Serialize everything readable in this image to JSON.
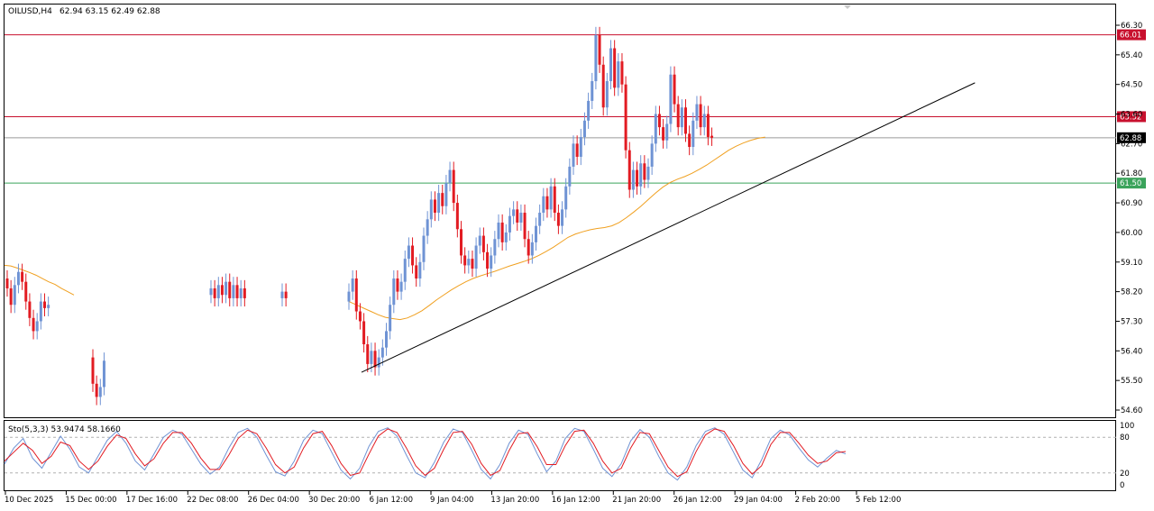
{
  "header": {
    "title": "OILUSD,H4",
    "ohlc": "62.94 63.15 62.49 62.88"
  },
  "indicator": {
    "label": "Sto(5,3,3) 53.9474 58.1660",
    "levels": [
      80,
      20
    ],
    "axis_ticks": [
      "100",
      "80",
      "20",
      "0"
    ]
  },
  "colors": {
    "bull": "#6f93d4",
    "bear": "#e21b22",
    "ma": "#f0a020",
    "resistance": "#c8102e",
    "support": "#3aa35b",
    "current": "#9a9a9a",
    "trendline": "#000000",
    "stoch_main": "#6f93d4",
    "stoch_signal": "#e21b22"
  },
  "chart_data": {
    "type": "candlestick",
    "symbol": "OILUSD",
    "timeframe": "H4",
    "ylim": [
      54.6,
      66.7
    ],
    "y_ticks": [
      "66.30",
      "65.40",
      "64.50",
      "63.60",
      "62.70",
      "61.80",
      "60.90",
      "60.00",
      "59.10",
      "58.20",
      "57.30",
      "56.40",
      "55.50",
      "54.60"
    ],
    "x_ticks": [
      "10 Dec 2025",
      "15 Dec 00:00",
      "17 Dec 16:00",
      "22 Dec 08:00",
      "26 Dec 04:00",
      "30 Dec 20:00",
      "6 Jan 12:00",
      "9 Jan 04:00",
      "13 Jan 20:00",
      "16 Jan 12:00",
      "21 Jan 20:00",
      "26 Jan 12:00",
      "29 Jan 04:00",
      "2 Feb 20:00",
      "5 Feb 12:00"
    ],
    "levels": [
      {
        "label": "66.01",
        "value": 66.01,
        "kind": "resistance"
      },
      {
        "label": "63.52",
        "value": 63.52,
        "kind": "resistance"
      },
      {
        "label": "62.88",
        "value": 62.88,
        "kind": "current"
      },
      {
        "label": "61.50",
        "value": 61.5,
        "kind": "support"
      }
    ],
    "trendline": {
      "from": {
        "bar": 0,
        "price": 55.75
      },
      "to": {
        "bar": 108,
        "price": 64.55
      }
    },
    "series": [
      {
        "seg": 1,
        "o": 58.6,
        "c": 58.3
      },
      {
        "seg": 1,
        "o": 58.3,
        "c": 57.8
      },
      {
        "seg": 1,
        "o": 57.8,
        "c": 58.4
      },
      {
        "seg": 1,
        "o": 58.4,
        "c": 58.8
      },
      {
        "seg": 1,
        "o": 58.8,
        "c": 58.5
      },
      {
        "seg": 1,
        "o": 58.5,
        "c": 57.9
      },
      {
        "seg": 1,
        "o": 57.9,
        "c": 57.4
      },
      {
        "seg": 1,
        "o": 57.4,
        "c": 57.0
      },
      {
        "seg": 1,
        "o": 57.0,
        "c": 57.3
      },
      {
        "seg": 1,
        "o": 57.3,
        "c": 57.9
      },
      {
        "seg": 1,
        "o": 57.9,
        "c": 57.7
      },
      {
        "seg": 1,
        "o": 57.7,
        "c": 57.8
      },
      {
        "seg": 2,
        "o": 56.2,
        "c": 55.4
      },
      {
        "seg": 2,
        "o": 55.4,
        "c": 55.0
      },
      {
        "seg": 2,
        "o": 55.0,
        "c": 55.3
      },
      {
        "seg": 2,
        "o": 55.3,
        "c": 56.1
      },
      {
        "seg": 3,
        "o": 58.1,
        "c": 58.3
      },
      {
        "seg": 3,
        "o": 58.3,
        "c": 58.0
      },
      {
        "seg": 3,
        "o": 58.0,
        "c": 58.4
      },
      {
        "seg": 3,
        "o": 58.4,
        "c": 58.1
      },
      {
        "seg": 3,
        "o": 58.1,
        "c": 58.5
      },
      {
        "seg": 3,
        "o": 58.5,
        "c": 58.0
      },
      {
        "seg": 3,
        "o": 58.0,
        "c": 58.4
      },
      {
        "seg": 3,
        "o": 58.4,
        "c": 58.0
      },
      {
        "seg": 3,
        "o": 58.0,
        "c": 58.3
      },
      {
        "seg": 3,
        "o": 58.3,
        "c": 58.0
      },
      {
        "seg": 4,
        "o": 58.0,
        "c": 58.2
      },
      {
        "seg": 4,
        "o": 58.2,
        "c": 58.0
      },
      {
        "seg": 5,
        "o": 57.9,
        "c": 58.2
      },
      {
        "seg": 5,
        "o": 58.2,
        "c": 58.6
      },
      {
        "seg": 5,
        "o": 58.6,
        "c": 57.6
      },
      {
        "seg": 5,
        "o": 57.6,
        "c": 57.3
      },
      {
        "seg": 5,
        "o": 57.3,
        "c": 56.6
      },
      {
        "seg": 5,
        "o": 56.6,
        "c": 56.0
      },
      {
        "seg": 5,
        "o": 56.0,
        "c": 56.4
      },
      {
        "seg": 5,
        "o": 56.4,
        "c": 55.9
      },
      {
        "seg": 5,
        "o": 55.9,
        "c": 56.2
      },
      {
        "seg": 5,
        "o": 56.2,
        "c": 56.5
      },
      {
        "seg": 5,
        "o": 56.5,
        "c": 57.0
      },
      {
        "seg": 5,
        "o": 57.0,
        "c": 57.8
      },
      {
        "seg": 5,
        "o": 57.8,
        "c": 58.6
      },
      {
        "seg": 5,
        "o": 58.6,
        "c": 58.2
      },
      {
        "seg": 5,
        "o": 58.2,
        "c": 58.5
      },
      {
        "seg": 5,
        "o": 58.5,
        "c": 59.2
      },
      {
        "seg": 5,
        "o": 59.2,
        "c": 59.6
      },
      {
        "seg": 5,
        "o": 59.6,
        "c": 59.0
      },
      {
        "seg": 5,
        "o": 59.0,
        "c": 58.6
      },
      {
        "seg": 5,
        "o": 58.6,
        "c": 59.1
      },
      {
        "seg": 5,
        "o": 59.1,
        "c": 59.9
      },
      {
        "seg": 5,
        "o": 59.9,
        "c": 60.4
      },
      {
        "seg": 5,
        "o": 60.4,
        "c": 61.0
      },
      {
        "seg": 5,
        "o": 61.0,
        "c": 60.6
      },
      {
        "seg": 5,
        "o": 60.6,
        "c": 61.2
      },
      {
        "seg": 5,
        "o": 61.2,
        "c": 60.8
      },
      {
        "seg": 5,
        "o": 60.8,
        "c": 61.5
      },
      {
        "seg": 5,
        "o": 61.5,
        "c": 61.9
      },
      {
        "seg": 5,
        "o": 61.9,
        "c": 60.9
      },
      {
        "seg": 5,
        "o": 60.9,
        "c": 60.1
      },
      {
        "seg": 5,
        "o": 60.1,
        "c": 59.3
      },
      {
        "seg": 5,
        "o": 59.3,
        "c": 59.0
      },
      {
        "seg": 5,
        "o": 59.0,
        "c": 59.2
      },
      {
        "seg": 5,
        "o": 59.2,
        "c": 58.9
      },
      {
        "seg": 5,
        "o": 58.9,
        "c": 59.6
      },
      {
        "seg": 5,
        "o": 59.6,
        "c": 59.9
      },
      {
        "seg": 5,
        "o": 59.9,
        "c": 59.4
      },
      {
        "seg": 5,
        "o": 59.4,
        "c": 58.9
      },
      {
        "seg": 5,
        "o": 58.9,
        "c": 59.3
      },
      {
        "seg": 5,
        "o": 59.3,
        "c": 59.8
      },
      {
        "seg": 5,
        "o": 59.8,
        "c": 60.3
      },
      {
        "seg": 5,
        "o": 60.3,
        "c": 59.7
      },
      {
        "seg": 5,
        "o": 59.7,
        "c": 60.0
      },
      {
        "seg": 5,
        "o": 60.0,
        "c": 60.5
      },
      {
        "seg": 5,
        "o": 60.5,
        "c": 60.7
      },
      {
        "seg": 5,
        "o": 60.7,
        "c": 60.3
      },
      {
        "seg": 5,
        "o": 60.3,
        "c": 60.6
      },
      {
        "seg": 5,
        "o": 60.6,
        "c": 59.8
      },
      {
        "seg": 5,
        "o": 59.8,
        "c": 59.3
      },
      {
        "seg": 5,
        "o": 59.3,
        "c": 59.7
      },
      {
        "seg": 5,
        "o": 59.7,
        "c": 60.2
      },
      {
        "seg": 5,
        "o": 60.2,
        "c": 60.6
      },
      {
        "seg": 5,
        "o": 60.6,
        "c": 61.1
      },
      {
        "seg": 5,
        "o": 61.1,
        "c": 60.7
      },
      {
        "seg": 5,
        "o": 60.7,
        "c": 61.4
      },
      {
        "seg": 5,
        "o": 61.4,
        "c": 60.6
      },
      {
        "seg": 5,
        "o": 60.6,
        "c": 60.2
      },
      {
        "seg": 5,
        "o": 60.2,
        "c": 60.7
      },
      {
        "seg": 5,
        "o": 60.7,
        "c": 61.4
      },
      {
        "seg": 5,
        "o": 61.4,
        "c": 62.0
      },
      {
        "seg": 5,
        "o": 62.0,
        "c": 62.7
      },
      {
        "seg": 5,
        "o": 62.7,
        "c": 62.3
      },
      {
        "seg": 5,
        "o": 62.3,
        "c": 62.9
      },
      {
        "seg": 5,
        "o": 62.9,
        "c": 63.4
      },
      {
        "seg": 5,
        "o": 63.4,
        "c": 64.0
      },
      {
        "seg": 5,
        "o": 64.0,
        "c": 64.6
      },
      {
        "seg": 5,
        "o": 64.6,
        "c": 66.0
      },
      {
        "seg": 5,
        "o": 66.0,
        "c": 65.1
      },
      {
        "seg": 5,
        "o": 65.1,
        "c": 63.8
      },
      {
        "seg": 5,
        "o": 63.8,
        "c": 64.6
      },
      {
        "seg": 5,
        "o": 64.6,
        "c": 65.6
      },
      {
        "seg": 5,
        "o": 65.6,
        "c": 64.4
      },
      {
        "seg": 5,
        "o": 64.4,
        "c": 65.2
      },
      {
        "seg": 5,
        "o": 65.2,
        "c": 64.5
      },
      {
        "seg": 5,
        "o": 64.5,
        "c": 62.5
      },
      {
        "seg": 5,
        "o": 62.5,
        "c": 61.3
      },
      {
        "seg": 5,
        "o": 61.3,
        "c": 61.9
      },
      {
        "seg": 5,
        "o": 61.9,
        "c": 61.4
      },
      {
        "seg": 5,
        "o": 61.4,
        "c": 62.1
      },
      {
        "seg": 5,
        "o": 62.1,
        "c": 61.6
      },
      {
        "seg": 5,
        "o": 61.6,
        "c": 62.0
      },
      {
        "seg": 5,
        "o": 62.0,
        "c": 62.7
      },
      {
        "seg": 5,
        "o": 62.7,
        "c": 63.6
      },
      {
        "seg": 5,
        "o": 63.6,
        "c": 63.2
      },
      {
        "seg": 5,
        "o": 63.2,
        "c": 62.8
      },
      {
        "seg": 5,
        "o": 62.8,
        "c": 63.3
      },
      {
        "seg": 5,
        "o": 63.3,
        "c": 64.8
      },
      {
        "seg": 5,
        "o": 64.8,
        "c": 63.9
      },
      {
        "seg": 5,
        "o": 63.9,
        "c": 63.2
      },
      {
        "seg": 5,
        "o": 63.2,
        "c": 63.8
      },
      {
        "seg": 5,
        "o": 63.8,
        "c": 63.0
      },
      {
        "seg": 5,
        "o": 63.0,
        "c": 62.6
      },
      {
        "seg": 5,
        "o": 62.6,
        "c": 63.4
      },
      {
        "seg": 5,
        "o": 63.4,
        "c": 63.9
      },
      {
        "seg": 5,
        "o": 63.9,
        "c": 63.2
      },
      {
        "seg": 5,
        "o": 63.2,
        "c": 63.6
      },
      {
        "seg": 5,
        "o": 63.6,
        "c": 62.9
      },
      {
        "seg": 5,
        "o": 62.94,
        "c": 62.88
      }
    ],
    "ma": [
      {
        "seg": 1,
        "v": 59.0
      },
      {
        "seg": 1,
        "v": 58.98
      },
      {
        "seg": 1,
        "v": 58.92
      },
      {
        "seg": 1,
        "v": 58.85
      },
      {
        "seg": 1,
        "v": 58.78
      },
      {
        "seg": 1,
        "v": 58.7
      },
      {
        "seg": 1,
        "v": 58.6
      },
      {
        "seg": 1,
        "v": 58.5
      },
      {
        "seg": 1,
        "v": 58.42
      },
      {
        "seg": 1,
        "v": 58.3
      },
      {
        "seg": 1,
        "v": 58.2
      },
      {
        "seg": 1,
        "v": 58.1
      },
      {
        "seg": 5,
        "v": 57.9
      },
      {
        "seg": 5,
        "v": 57.8
      },
      {
        "seg": 5,
        "v": 57.7
      },
      {
        "seg": 5,
        "v": 57.6
      },
      {
        "seg": 5,
        "v": 57.5
      },
      {
        "seg": 5,
        "v": 57.42
      },
      {
        "seg": 5,
        "v": 57.38
      },
      {
        "seg": 5,
        "v": 57.35
      },
      {
        "seg": 5,
        "v": 57.4
      },
      {
        "seg": 5,
        "v": 57.5
      },
      {
        "seg": 5,
        "v": 57.62
      },
      {
        "seg": 5,
        "v": 57.78
      },
      {
        "seg": 5,
        "v": 57.95
      },
      {
        "seg": 5,
        "v": 58.1
      },
      {
        "seg": 5,
        "v": 58.25
      },
      {
        "seg": 5,
        "v": 58.38
      },
      {
        "seg": 5,
        "v": 58.5
      },
      {
        "seg": 5,
        "v": 58.6
      },
      {
        "seg": 5,
        "v": 58.68
      },
      {
        "seg": 5,
        "v": 58.75
      },
      {
        "seg": 5,
        "v": 58.82
      },
      {
        "seg": 5,
        "v": 58.9
      },
      {
        "seg": 5,
        "v": 58.98
      },
      {
        "seg": 5,
        "v": 59.05
      },
      {
        "seg": 5,
        "v": 59.12
      },
      {
        "seg": 5,
        "v": 59.2
      },
      {
        "seg": 5,
        "v": 59.3
      },
      {
        "seg": 5,
        "v": 59.42
      },
      {
        "seg": 5,
        "v": 59.55
      },
      {
        "seg": 5,
        "v": 59.7
      },
      {
        "seg": 5,
        "v": 59.85
      },
      {
        "seg": 5,
        "v": 59.95
      },
      {
        "seg": 5,
        "v": 60.02
      },
      {
        "seg": 5,
        "v": 60.08
      },
      {
        "seg": 5,
        "v": 60.12
      },
      {
        "seg": 5,
        "v": 60.15
      },
      {
        "seg": 5,
        "v": 60.2
      },
      {
        "seg": 5,
        "v": 60.3
      },
      {
        "seg": 5,
        "v": 60.45
      },
      {
        "seg": 5,
        "v": 60.62
      },
      {
        "seg": 5,
        "v": 60.8
      },
      {
        "seg": 5,
        "v": 61.0
      },
      {
        "seg": 5,
        "v": 61.2
      },
      {
        "seg": 5,
        "v": 61.38
      },
      {
        "seg": 5,
        "v": 61.52
      },
      {
        "seg": 5,
        "v": 61.62
      },
      {
        "seg": 5,
        "v": 61.7
      },
      {
        "seg": 5,
        "v": 61.8
      },
      {
        "seg": 5,
        "v": 61.92
      },
      {
        "seg": 5,
        "v": 62.05
      },
      {
        "seg": 5,
        "v": 62.2
      },
      {
        "seg": 5,
        "v": 62.35
      },
      {
        "seg": 5,
        "v": 62.5
      },
      {
        "seg": 5,
        "v": 62.62
      },
      {
        "seg": 5,
        "v": 62.72
      },
      {
        "seg": 5,
        "v": 62.8
      },
      {
        "seg": 5,
        "v": 62.86
      },
      {
        "seg": 5,
        "v": 62.9
      }
    ],
    "stochastic": {
      "main": [
        35,
        62,
        78,
        45,
        28,
        55,
        82,
        60,
        30,
        20,
        48,
        75,
        90,
        70,
        40,
        25,
        52,
        80,
        92,
        85,
        60,
        35,
        18,
        30,
        62,
        88,
        95,
        80,
        50,
        22,
        15,
        40,
        75,
        92,
        86,
        55,
        25,
        10,
        28,
        65,
        90,
        96,
        82,
        50,
        20,
        12,
        38,
        72,
        94,
        88,
        58,
        26,
        10,
        34,
        70,
        92,
        85,
        52,
        22,
        40,
        78,
        95,
        90,
        60,
        28,
        14,
        36,
        74,
        93,
        80,
        48,
        20,
        8,
        30,
        66,
        90,
        96,
        85,
        55,
        25,
        12,
        42,
        78,
        92,
        84,
        62,
        42,
        30,
        45,
        58,
        52
      ],
      "signal": [
        40,
        55,
        70,
        58,
        36,
        48,
        72,
        66,
        40,
        26,
        40,
        65,
        84,
        78,
        52,
        32,
        44,
        70,
        88,
        88,
        70,
        45,
        26,
        26,
        50,
        78,
        92,
        86,
        62,
        34,
        20,
        30,
        62,
        86,
        90,
        66,
        36,
        16,
        20,
        52,
        82,
        94,
        88,
        62,
        32,
        16,
        28,
        60,
        88,
        90,
        68,
        36,
        16,
        24,
        58,
        86,
        88,
        64,
        34,
        34,
        66,
        90,
        92,
        70,
        40,
        20,
        28,
        62,
        88,
        86,
        58,
        30,
        14,
        22,
        56,
        84,
        94,
        90,
        66,
        36,
        18,
        32,
        68,
        88,
        88,
        70,
        50,
        36,
        40,
        54,
        56
      ]
    }
  }
}
